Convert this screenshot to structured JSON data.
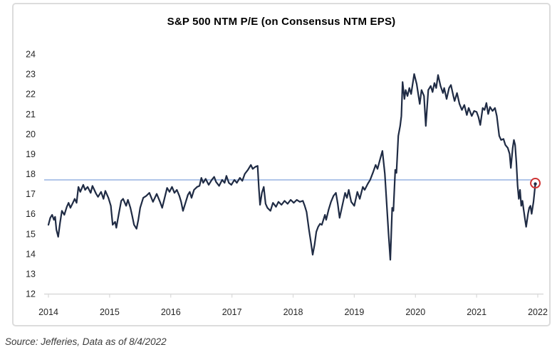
{
  "chart": {
    "title": "S&P 500 NTM P/E (on Consensus NTM EPS)",
    "source_note": "Source: Jefferies, Data as of 8/4/2022"
  },
  "chart_data": {
    "type": "line",
    "title": "S&P 500 NTM P/E (on Consensus NTM EPS)",
    "xlabel": "",
    "ylabel": "",
    "x_ticks": [
      2014,
      2015,
      2016,
      2017,
      2018,
      2019,
      2020,
      2021,
      2022
    ],
    "y_ticks": [
      12,
      13,
      14,
      15,
      16,
      17,
      18,
      19,
      20,
      21,
      22,
      23,
      24
    ],
    "ylim": [
      12,
      24
    ],
    "grid": false,
    "legend": false,
    "average_line": {
      "value": 17.7
    },
    "highlight": {
      "t": 7.96,
      "value": 17.5,
      "style": "open-red-circle",
      "note": "latest value, data as of 8/4/2022"
    },
    "colors": {
      "line": "#1f2b44",
      "average": "#9fb9e4",
      "highlight": "#cf3333",
      "axis": "#d9d9d9",
      "tick_text": "#262626"
    },
    "series": [
      {
        "name": "S&P 500 NTM P/E",
        "x_unit": "years-from-2014-tick",
        "points": [
          [
            0.0,
            15.45
          ],
          [
            0.03,
            15.8
          ],
          [
            0.06,
            15.95
          ],
          [
            0.09,
            15.7
          ],
          [
            0.11,
            15.85
          ],
          [
            0.13,
            15.2
          ],
          [
            0.16,
            14.85
          ],
          [
            0.19,
            15.55
          ],
          [
            0.22,
            16.15
          ],
          [
            0.26,
            15.95
          ],
          [
            0.3,
            16.35
          ],
          [
            0.33,
            16.55
          ],
          [
            0.36,
            16.3
          ],
          [
            0.4,
            16.55
          ],
          [
            0.43,
            16.75
          ],
          [
            0.46,
            16.55
          ],
          [
            0.49,
            17.35
          ],
          [
            0.52,
            17.1
          ],
          [
            0.57,
            17.45
          ],
          [
            0.6,
            17.2
          ],
          [
            0.64,
            17.35
          ],
          [
            0.69,
            17.05
          ],
          [
            0.72,
            17.4
          ],
          [
            0.78,
            17.0
          ],
          [
            0.81,
            16.85
          ],
          [
            0.86,
            17.1
          ],
          [
            0.9,
            16.75
          ],
          [
            0.93,
            17.15
          ],
          [
            0.98,
            16.8
          ],
          [
            1.02,
            16.4
          ],
          [
            1.05,
            15.45
          ],
          [
            1.09,
            15.6
          ],
          [
            1.11,
            15.3
          ],
          [
            1.15,
            16.0
          ],
          [
            1.19,
            16.65
          ],
          [
            1.22,
            16.75
          ],
          [
            1.27,
            16.4
          ],
          [
            1.3,
            16.7
          ],
          [
            1.34,
            16.3
          ],
          [
            1.37,
            15.9
          ],
          [
            1.4,
            15.45
          ],
          [
            1.44,
            15.25
          ],
          [
            1.47,
            15.7
          ],
          [
            1.5,
            16.3
          ],
          [
            1.55,
            16.8
          ],
          [
            1.6,
            16.9
          ],
          [
            1.65,
            17.05
          ],
          [
            1.71,
            16.6
          ],
          [
            1.77,
            17.0
          ],
          [
            1.83,
            16.55
          ],
          [
            1.86,
            16.3
          ],
          [
            1.94,
            17.3
          ],
          [
            1.98,
            17.1
          ],
          [
            2.02,
            17.35
          ],
          [
            2.06,
            17.05
          ],
          [
            2.1,
            17.2
          ],
          [
            2.14,
            16.9
          ],
          [
            2.17,
            16.6
          ],
          [
            2.2,
            16.15
          ],
          [
            2.24,
            16.55
          ],
          [
            2.28,
            16.95
          ],
          [
            2.31,
            17.1
          ],
          [
            2.34,
            16.8
          ],
          [
            2.38,
            17.2
          ],
          [
            2.43,
            17.35
          ],
          [
            2.47,
            17.4
          ],
          [
            2.5,
            17.8
          ],
          [
            2.53,
            17.55
          ],
          [
            2.57,
            17.75
          ],
          [
            2.62,
            17.45
          ],
          [
            2.67,
            17.7
          ],
          [
            2.71,
            17.85
          ],
          [
            2.74,
            17.6
          ],
          [
            2.79,
            17.4
          ],
          [
            2.84,
            17.7
          ],
          [
            2.88,
            17.55
          ],
          [
            2.91,
            17.9
          ],
          [
            2.95,
            17.55
          ],
          [
            2.99,
            17.45
          ],
          [
            3.04,
            17.7
          ],
          [
            3.08,
            17.55
          ],
          [
            3.13,
            17.8
          ],
          [
            3.17,
            17.65
          ],
          [
            3.21,
            18.0
          ],
          [
            3.26,
            18.2
          ],
          [
            3.31,
            18.45
          ],
          [
            3.34,
            18.25
          ],
          [
            3.38,
            18.35
          ],
          [
            3.42,
            18.4
          ],
          [
            3.44,
            17.3
          ],
          [
            3.46,
            16.45
          ],
          [
            3.49,
            17.05
          ],
          [
            3.52,
            17.35
          ],
          [
            3.55,
            16.5
          ],
          [
            3.58,
            16.3
          ],
          [
            3.63,
            16.15
          ],
          [
            3.67,
            16.55
          ],
          [
            3.72,
            16.35
          ],
          [
            3.76,
            16.6
          ],
          [
            3.81,
            16.45
          ],
          [
            3.86,
            16.65
          ],
          [
            3.91,
            16.5
          ],
          [
            3.96,
            16.7
          ],
          [
            4.01,
            16.55
          ],
          [
            4.06,
            16.7
          ],
          [
            4.11,
            16.6
          ],
          [
            4.16,
            16.65
          ],
          [
            4.19,
            16.4
          ],
          [
            4.22,
            16.1
          ],
          [
            4.26,
            15.2
          ],
          [
            4.29,
            14.6
          ],
          [
            4.32,
            13.95
          ],
          [
            4.35,
            14.45
          ],
          [
            4.38,
            15.1
          ],
          [
            4.41,
            15.35
          ],
          [
            4.44,
            15.5
          ],
          [
            4.47,
            15.45
          ],
          [
            4.52,
            15.95
          ],
          [
            4.54,
            15.7
          ],
          [
            4.58,
            16.2
          ],
          [
            4.62,
            16.6
          ],
          [
            4.66,
            16.9
          ],
          [
            4.7,
            17.05
          ],
          [
            4.73,
            16.5
          ],
          [
            4.76,
            15.8
          ],
          [
            4.8,
            16.35
          ],
          [
            4.85,
            17.05
          ],
          [
            4.88,
            16.8
          ],
          [
            4.91,
            17.2
          ],
          [
            4.95,
            16.6
          ],
          [
            5.0,
            16.4
          ],
          [
            5.05,
            17.1
          ],
          [
            5.09,
            16.75
          ],
          [
            5.14,
            17.35
          ],
          [
            5.17,
            17.2
          ],
          [
            5.22,
            17.5
          ],
          [
            5.26,
            17.7
          ],
          [
            5.31,
            18.1
          ],
          [
            5.35,
            18.45
          ],
          [
            5.38,
            18.25
          ],
          [
            5.42,
            18.7
          ],
          [
            5.46,
            19.15
          ],
          [
            5.5,
            18.0
          ],
          [
            5.53,
            16.5
          ],
          [
            5.56,
            15.0
          ],
          [
            5.59,
            13.7
          ],
          [
            5.62,
            16.3
          ],
          [
            5.64,
            16.15
          ],
          [
            5.67,
            18.2
          ],
          [
            5.69,
            18.05
          ],
          [
            5.72,
            19.9
          ],
          [
            5.75,
            20.4
          ],
          [
            5.77,
            20.9
          ],
          [
            5.79,
            22.6
          ],
          [
            5.82,
            21.75
          ],
          [
            5.84,
            22.2
          ],
          [
            5.87,
            21.9
          ],
          [
            5.9,
            22.3
          ],
          [
            5.93,
            22.0
          ],
          [
            5.98,
            23.0
          ],
          [
            6.02,
            22.5
          ],
          [
            6.07,
            21.5
          ],
          [
            6.1,
            22.2
          ],
          [
            6.14,
            21.9
          ],
          [
            6.17,
            20.4
          ],
          [
            6.21,
            22.2
          ],
          [
            6.25,
            22.4
          ],
          [
            6.28,
            22.1
          ],
          [
            6.31,
            22.55
          ],
          [
            6.34,
            22.3
          ],
          [
            6.37,
            22.95
          ],
          [
            6.41,
            22.4
          ],
          [
            6.45,
            22.05
          ],
          [
            6.47,
            22.3
          ],
          [
            6.51,
            21.75
          ],
          [
            6.55,
            22.3
          ],
          [
            6.58,
            22.45
          ],
          [
            6.62,
            21.9
          ],
          [
            6.64,
            21.65
          ],
          [
            6.68,
            22.05
          ],
          [
            6.72,
            21.5
          ],
          [
            6.76,
            21.2
          ],
          [
            6.8,
            21.45
          ],
          [
            6.84,
            20.95
          ],
          [
            6.87,
            21.3
          ],
          [
            6.92,
            20.9
          ],
          [
            6.96,
            21.15
          ],
          [
            7.0,
            21.1
          ],
          [
            7.03,
            20.85
          ],
          [
            7.06,
            20.45
          ],
          [
            7.1,
            21.3
          ],
          [
            7.13,
            21.2
          ],
          [
            7.16,
            21.55
          ],
          [
            7.19,
            21.0
          ],
          [
            7.22,
            21.35
          ],
          [
            7.26,
            21.15
          ],
          [
            7.3,
            21.3
          ],
          [
            7.33,
            20.9
          ],
          [
            7.37,
            19.9
          ],
          [
            7.4,
            19.7
          ],
          [
            7.44,
            19.75
          ],
          [
            7.47,
            19.45
          ],
          [
            7.51,
            19.3
          ],
          [
            7.54,
            19.0
          ],
          [
            7.56,
            18.3
          ],
          [
            7.59,
            19.3
          ],
          [
            7.61,
            19.7
          ],
          [
            7.63,
            19.45
          ],
          [
            7.65,
            18.6
          ],
          [
            7.67,
            17.4
          ],
          [
            7.69,
            16.75
          ],
          [
            7.71,
            17.2
          ],
          [
            7.73,
            16.4
          ],
          [
            7.75,
            16.65
          ],
          [
            7.77,
            16.2
          ],
          [
            7.79,
            15.75
          ],
          [
            7.81,
            15.35
          ],
          [
            7.84,
            16.0
          ],
          [
            7.86,
            16.3
          ],
          [
            7.88,
            16.4
          ],
          [
            7.9,
            16.0
          ],
          [
            7.93,
            16.6
          ],
          [
            7.96,
            17.5
          ]
        ]
      }
    ]
  }
}
